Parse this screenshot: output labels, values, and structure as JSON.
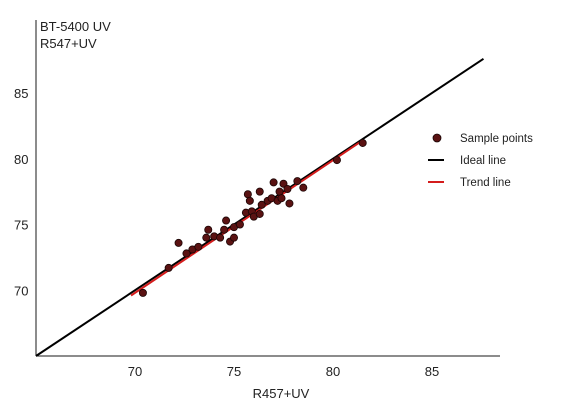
{
  "chart_data": {
    "type": "scatter",
    "ylabel_lines": [
      "BT-5400 UV",
      "R547+UV"
    ],
    "xlabel": "R457+UV",
    "xlim": [
      65,
      88
    ],
    "ylim": [
      65,
      88
    ],
    "x_ticks": [
      70,
      75,
      80,
      85
    ],
    "y_ticks": [
      70,
      75,
      80,
      85
    ],
    "grid": false,
    "legend_position": "right",
    "legend": [
      {
        "label": "Sample points",
        "kind": "marker",
        "color": "#5a1212"
      },
      {
        "label": "Ideal line",
        "kind": "line",
        "color": "#000000"
      },
      {
        "label": "Trend line",
        "kind": "line",
        "color": "#d41c1c"
      }
    ],
    "series": [
      {
        "name": "Sample points",
        "type": "scatter",
        "color": "#5a1212",
        "points": [
          [
            70.4,
            69.8
          ],
          [
            71.7,
            71.7
          ],
          [
            72.2,
            73.6
          ],
          [
            72.6,
            72.8
          ],
          [
            72.9,
            73.1
          ],
          [
            73.2,
            73.3
          ],
          [
            73.6,
            74.0
          ],
          [
            73.7,
            74.6
          ],
          [
            74.0,
            74.1
          ],
          [
            74.3,
            74.0
          ],
          [
            74.5,
            74.6
          ],
          [
            74.6,
            75.3
          ],
          [
            74.8,
            73.7
          ],
          [
            75.0,
            74.0
          ],
          [
            75.0,
            74.8
          ],
          [
            75.3,
            75.0
          ],
          [
            75.6,
            75.9
          ],
          [
            75.7,
            77.3
          ],
          [
            75.8,
            76.8
          ],
          [
            75.9,
            76.0
          ],
          [
            76.0,
            75.6
          ],
          [
            76.3,
            77.5
          ],
          [
            76.3,
            75.8
          ],
          [
            76.4,
            76.5
          ],
          [
            76.7,
            76.8
          ],
          [
            76.9,
            77.0
          ],
          [
            77.0,
            78.2
          ],
          [
            77.2,
            76.8
          ],
          [
            77.3,
            77.5
          ],
          [
            77.4,
            77.0
          ],
          [
            77.5,
            78.1
          ],
          [
            77.7,
            77.7
          ],
          [
            77.8,
            76.6
          ],
          [
            78.2,
            78.3
          ],
          [
            78.5,
            77.8
          ],
          [
            80.2,
            79.9
          ],
          [
            81.5,
            81.2
          ]
        ]
      },
      {
        "name": "Ideal line",
        "type": "line",
        "color": "#000000",
        "points": [
          [
            65,
            65
          ],
          [
            87.6,
            87.6
          ]
        ]
      },
      {
        "name": "Trend line",
        "type": "line",
        "color": "#d41c1c",
        "points": [
          [
            69.8,
            69.6
          ],
          [
            81.4,
            81.3
          ]
        ]
      }
    ]
  }
}
